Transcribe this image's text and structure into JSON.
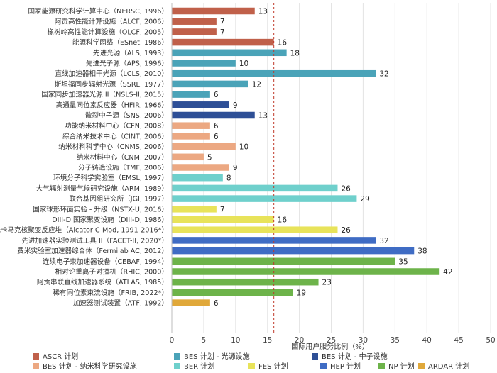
{
  "chart_data": {
    "type": "bar",
    "orientation": "horizontal",
    "xlabel": "国际用户服务比例（%）",
    "xlim": [
      0,
      50
    ],
    "xticks": [
      0,
      5,
      10,
      15,
      20,
      25,
      30,
      35,
      40,
      45,
      50
    ],
    "grid": "vertical",
    "reference_line": {
      "value": 16,
      "style": "dashed",
      "color": "#c0392b"
    },
    "programs": [
      {
        "key": "ASCR",
        "name": "ASCR 计划",
        "color": "#c0604a"
      },
      {
        "key": "BES_LS",
        "name": "BES 计划 - 光源设施",
        "color": "#4aa3b8"
      },
      {
        "key": "BES_NS",
        "name": "BES 计划 - 中子设施",
        "color": "#2e4f96"
      },
      {
        "key": "BES_NANO",
        "name": "BES 计划 - 纳米科学研究设施",
        "color": "#eca882"
      },
      {
        "key": "BER",
        "name": "BER 计划",
        "color": "#6fd0cc"
      },
      {
        "key": "FES",
        "name": "FES 计划",
        "color": "#e8e35a"
      },
      {
        "key": "HEP",
        "name": "HEP 计划",
        "color": "#3f6cc4"
      },
      {
        "key": "NP",
        "name": "NP 计划",
        "color": "#6db34a"
      },
      {
        "key": "ARDAR",
        "name": "ARDAR 计划",
        "color": "#e0a83a"
      }
    ],
    "bars": [
      {
        "label": "国家能源研究科学计算中心（NERSC, 1996）",
        "value": 13,
        "program": "ASCR"
      },
      {
        "label": "阿贡高性能计算设施（ALCF, 2006）",
        "value": 7,
        "program": "ASCR"
      },
      {
        "label": "橡树岭高性能计算设施（OLCF, 2005）",
        "value": 7,
        "program": "ASCR"
      },
      {
        "label": "能源科学网络（ESnet, 1986）",
        "value": 16,
        "program": "ASCR"
      },
      {
        "label": "先进光源（ALS, 1993）",
        "value": 18,
        "program": "BES_LS"
      },
      {
        "label": "先进光子源（APS, 1996）",
        "value": 10,
        "program": "BES_LS"
      },
      {
        "label": "直线加速器相干光源（LCLS, 2010）",
        "value": 32,
        "program": "BES_LS"
      },
      {
        "label": "斯坦福同步辐射光源（SSRL, 1977）",
        "value": 12,
        "program": "BES_LS"
      },
      {
        "label": "国家同步加速器光源 II（NSLS-II, 2015）",
        "value": 6,
        "program": "BES_LS"
      },
      {
        "label": "高通量同位素反应器（HFIR, 1966）",
        "value": 9,
        "program": "BES_NS"
      },
      {
        "label": "散裂中子源（SNS, 2006）",
        "value": 13,
        "program": "BES_NS"
      },
      {
        "label": "功能纳米材料中心（CFN, 2008）",
        "value": 6,
        "program": "BES_NANO"
      },
      {
        "label": "综合纳米技术中心（CINT, 2006）",
        "value": 6,
        "program": "BES_NANO"
      },
      {
        "label": "纳米材料科学中心（CNMS, 2006）",
        "value": 10,
        "program": "BES_NANO"
      },
      {
        "label": "纳米材料中心（CNM, 2007）",
        "value": 5,
        "program": "BES_NANO"
      },
      {
        "label": "分子铸造设施（TMF, 2006）",
        "value": 9,
        "program": "BES_NANO"
      },
      {
        "label": "环境分子科学实验室（EMSL, 1997）",
        "value": 8,
        "program": "BER"
      },
      {
        "label": "大气辐射测量气候研究设施（ARM, 1989）",
        "value": 26,
        "program": "BER"
      },
      {
        "label": "联合基因组研究所（JGI, 1997）",
        "value": 29,
        "program": "BER"
      },
      {
        "label": "国家球形环面实验 - 升级（NSTX-U, 2016）",
        "value": 7,
        "program": "FES"
      },
      {
        "label": "DIII-D 国家聚变设施（DIII-D, 1986）",
        "value": 16,
        "program": "FES"
      },
      {
        "label": "托卡马克核聚变反应堆（Alcator C-Mod, 1991-2016*）",
        "value": 26,
        "program": "FES"
      },
      {
        "label": "先进加速器实验测试工具 II（FACET-II, 2020*）",
        "value": 32,
        "program": "HEP"
      },
      {
        "label": "费米实验室加速器综合体（Fermilab AC, 2012）",
        "value": 38,
        "program": "HEP"
      },
      {
        "label": "连续电子束加速器设备（CEBAF, 1994）",
        "value": 35,
        "program": "NP"
      },
      {
        "label": "相对论重离子对撞机（RHIC, 2000）",
        "value": 42,
        "program": "NP"
      },
      {
        "label": "阿贡串联直线加速器系统（ATLAS, 1985）",
        "value": 23,
        "program": "NP"
      },
      {
        "label": "稀有同位素束流设施（FRIB, 2022*）",
        "value": 19,
        "program": "NP"
      },
      {
        "label": "加速器测试装置（ATF, 1992）",
        "value": 6,
        "program": "ARDAR"
      }
    ],
    "legend_placement": "bottom"
  }
}
